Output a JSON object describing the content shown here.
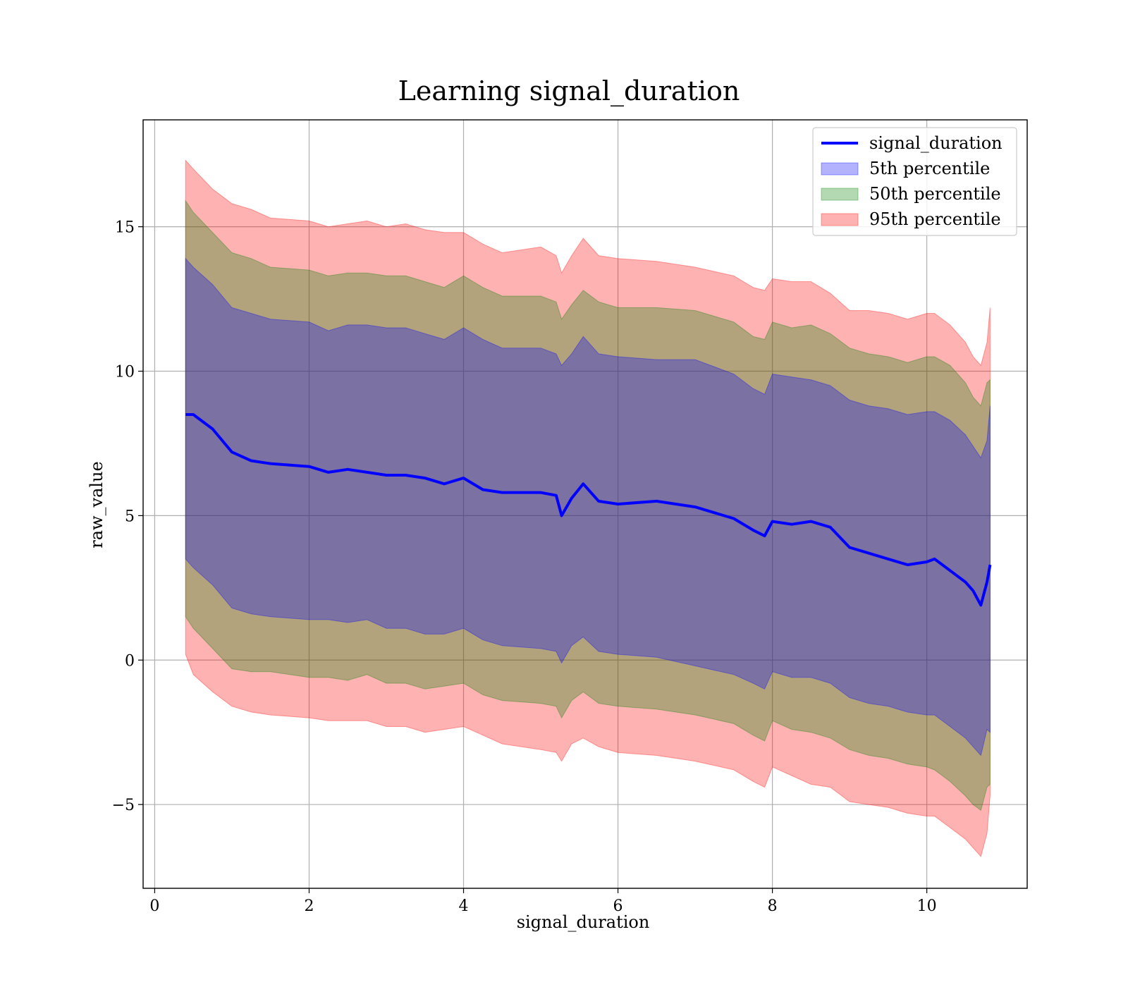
{
  "chart_data": {
    "type": "line",
    "title": "Learning signal_duration",
    "xlabel": "signal_duration",
    "ylabel": "raw_value",
    "xlim": [
      -0.15,
      11.3
    ],
    "ylim": [
      -7.9,
      18.7
    ],
    "xticks": [
      0,
      2,
      4,
      6,
      8,
      10
    ],
    "yticks": [
      -5,
      0,
      5,
      10,
      15
    ],
    "xtick_labels": [
      "0",
      "2",
      "4",
      "6",
      "8",
      "10"
    ],
    "ytick_labels": [
      "−5",
      "0",
      "5",
      "10",
      "15"
    ],
    "grid": true,
    "legend_position": "top-right",
    "legend": [
      {
        "label": "signal_duration",
        "kind": "line",
        "color": "#0000ff"
      },
      {
        "label": "5th percentile",
        "kind": "patch",
        "color": "#0000ff"
      },
      {
        "label": "50th percentile",
        "kind": "patch",
        "color": "#008000"
      },
      {
        "label": "95th percentile",
        "kind": "patch",
        "color": "#ff0000"
      }
    ],
    "x": [
      0.4,
      0.5,
      0.75,
      1.0,
      1.25,
      1.5,
      2.0,
      2.25,
      2.5,
      2.75,
      3.0,
      3.25,
      3.5,
      3.75,
      4.0,
      4.25,
      4.5,
      5.0,
      5.2,
      5.27,
      5.4,
      5.55,
      5.75,
      6.0,
      6.5,
      7.0,
      7.5,
      7.75,
      7.9,
      8.0,
      8.25,
      8.5,
      8.75,
      9.0,
      9.25,
      9.5,
      9.75,
      10.0,
      10.1,
      10.3,
      10.5,
      10.6,
      10.7,
      10.78,
      10.82
    ],
    "series": [
      {
        "name": "signal_duration",
        "color": "#0000ff",
        "values": [
          8.5,
          8.5,
          8.0,
          7.2,
          6.9,
          6.8,
          6.7,
          6.5,
          6.6,
          6.5,
          6.4,
          6.4,
          6.3,
          6.1,
          6.3,
          5.9,
          5.8,
          5.8,
          5.7,
          5.0,
          5.6,
          6.1,
          5.5,
          5.4,
          5.5,
          5.3,
          4.9,
          4.5,
          4.3,
          4.8,
          4.7,
          4.8,
          4.6,
          3.9,
          3.7,
          3.5,
          3.3,
          3.4,
          3.5,
          3.1,
          2.7,
          2.4,
          1.9,
          2.7,
          3.3
        ]
      }
    ],
    "bands": [
      {
        "name": "95th percentile",
        "color": "#ff0000",
        "upper": [
          17.3,
          17.0,
          16.3,
          15.8,
          15.6,
          15.3,
          15.2,
          15.0,
          15.1,
          15.2,
          15.0,
          15.1,
          14.9,
          14.8,
          14.8,
          14.4,
          14.1,
          14.3,
          14.0,
          13.4,
          14.0,
          14.6,
          14.0,
          13.9,
          13.8,
          13.6,
          13.3,
          12.9,
          12.8,
          13.2,
          13.1,
          13.1,
          12.7,
          12.1,
          12.1,
          12.0,
          11.8,
          12.0,
          12.0,
          11.6,
          11.0,
          10.5,
          10.2,
          11.0,
          12.2
        ],
        "lower": [
          0.2,
          -0.5,
          -1.1,
          -1.6,
          -1.8,
          -1.9,
          -2.0,
          -2.1,
          -2.1,
          -2.1,
          -2.3,
          -2.3,
          -2.5,
          -2.4,
          -2.3,
          -2.6,
          -2.9,
          -3.1,
          -3.2,
          -3.5,
          -2.9,
          -2.7,
          -3.0,
          -3.2,
          -3.3,
          -3.5,
          -3.8,
          -4.2,
          -4.4,
          -3.7,
          -4.0,
          -4.3,
          -4.4,
          -4.9,
          -5.0,
          -5.1,
          -5.3,
          -5.4,
          -5.4,
          -5.8,
          -6.2,
          -6.5,
          -6.8,
          -6.0,
          -4.7
        ]
      },
      {
        "name": "50th percentile",
        "color": "#008000",
        "upper": [
          15.9,
          15.5,
          14.8,
          14.1,
          13.9,
          13.6,
          13.5,
          13.3,
          13.4,
          13.4,
          13.3,
          13.3,
          13.1,
          12.9,
          13.3,
          12.9,
          12.6,
          12.6,
          12.4,
          11.8,
          12.3,
          12.8,
          12.4,
          12.2,
          12.2,
          12.1,
          11.7,
          11.2,
          11.1,
          11.7,
          11.5,
          11.6,
          11.3,
          10.8,
          10.6,
          10.5,
          10.3,
          10.5,
          10.5,
          10.2,
          9.6,
          9.1,
          8.8,
          9.6,
          9.7
        ],
        "lower": [
          1.5,
          1.1,
          0.4,
          -0.3,
          -0.4,
          -0.4,
          -0.6,
          -0.6,
          -0.7,
          -0.5,
          -0.8,
          -0.8,
          -1.0,
          -0.9,
          -0.8,
          -1.2,
          -1.4,
          -1.5,
          -1.6,
          -2.0,
          -1.4,
          -1.1,
          -1.5,
          -1.6,
          -1.7,
          -1.9,
          -2.2,
          -2.6,
          -2.8,
          -2.1,
          -2.4,
          -2.5,
          -2.7,
          -3.1,
          -3.3,
          -3.4,
          -3.6,
          -3.7,
          -3.8,
          -4.2,
          -4.7,
          -5.0,
          -5.2,
          -4.4,
          -4.3
        ]
      },
      {
        "name": "5th percentile",
        "color": "#0000ff",
        "upper": [
          13.9,
          13.6,
          13.0,
          12.2,
          12.0,
          11.8,
          11.7,
          11.4,
          11.6,
          11.6,
          11.5,
          11.5,
          11.3,
          11.1,
          11.5,
          11.1,
          10.8,
          10.8,
          10.6,
          10.2,
          10.6,
          11.2,
          10.6,
          10.5,
          10.4,
          10.4,
          9.9,
          9.4,
          9.2,
          9.9,
          9.8,
          9.7,
          9.5,
          9.0,
          8.8,
          8.7,
          8.5,
          8.6,
          8.6,
          8.3,
          7.8,
          7.4,
          7.0,
          7.6,
          8.8
        ],
        "lower": [
          3.5,
          3.2,
          2.6,
          1.8,
          1.6,
          1.5,
          1.4,
          1.4,
          1.3,
          1.4,
          1.1,
          1.1,
          0.9,
          0.9,
          1.1,
          0.7,
          0.5,
          0.4,
          0.3,
          -0.1,
          0.5,
          0.8,
          0.3,
          0.2,
          0.1,
          -0.2,
          -0.5,
          -0.8,
          -1.0,
          -0.4,
          -0.6,
          -0.6,
          -0.8,
          -1.3,
          -1.5,
          -1.6,
          -1.8,
          -1.9,
          -1.9,
          -2.3,
          -2.7,
          -3.0,
          -3.3,
          -2.4,
          -2.5
        ]
      }
    ]
  }
}
